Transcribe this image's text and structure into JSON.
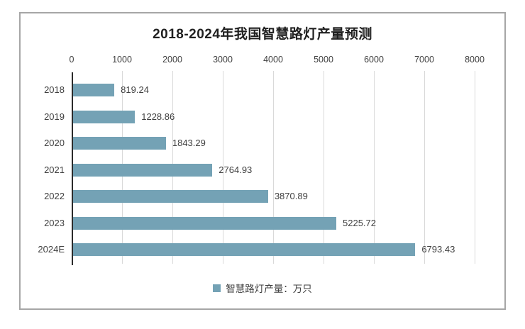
{
  "title": "2018-2024年我国智慧路灯产量预测",
  "colors": {
    "bar": "#74a2b5",
    "gridline": "#d9d9d9",
    "axis_line": "#2b2b2b",
    "frame_border": "#a6a6a6",
    "text": "#3f3f3f",
    "title_text": "#1f1f1f",
    "background": "#ffffff"
  },
  "chart_data": {
    "type": "bar",
    "orientation": "horizontal",
    "title": "2018-2024年我国智慧路灯产量预测",
    "categories": [
      "2018",
      "2019",
      "2020",
      "2021",
      "2022",
      "2023",
      "2024E"
    ],
    "series": [
      {
        "name": "智慧路灯产量：万只",
        "values": [
          819.24,
          1228.86,
          1843.29,
          2764.93,
          3870.89,
          5225.72,
          6793.43
        ]
      }
    ],
    "value_labels": [
      "819.24",
      "1228.86",
      "1843.29",
      "2764.93",
      "3870.89",
      "5225.72",
      "6793.43"
    ],
    "xlabel": "",
    "ylabel": "",
    "xlim": [
      0,
      8000
    ],
    "xticks": [
      0,
      1000,
      2000,
      3000,
      4000,
      5000,
      6000,
      7000,
      8000
    ],
    "xtick_labels": [
      "0",
      "1000",
      "2000",
      "3000",
      "4000",
      "5000",
      "6000",
      "7000",
      "8000"
    ],
    "x_axis_position": "top",
    "grid": true,
    "legend": [
      "智慧路灯产量：万只"
    ],
    "legend_position": "bottom",
    "unit": "万只"
  }
}
